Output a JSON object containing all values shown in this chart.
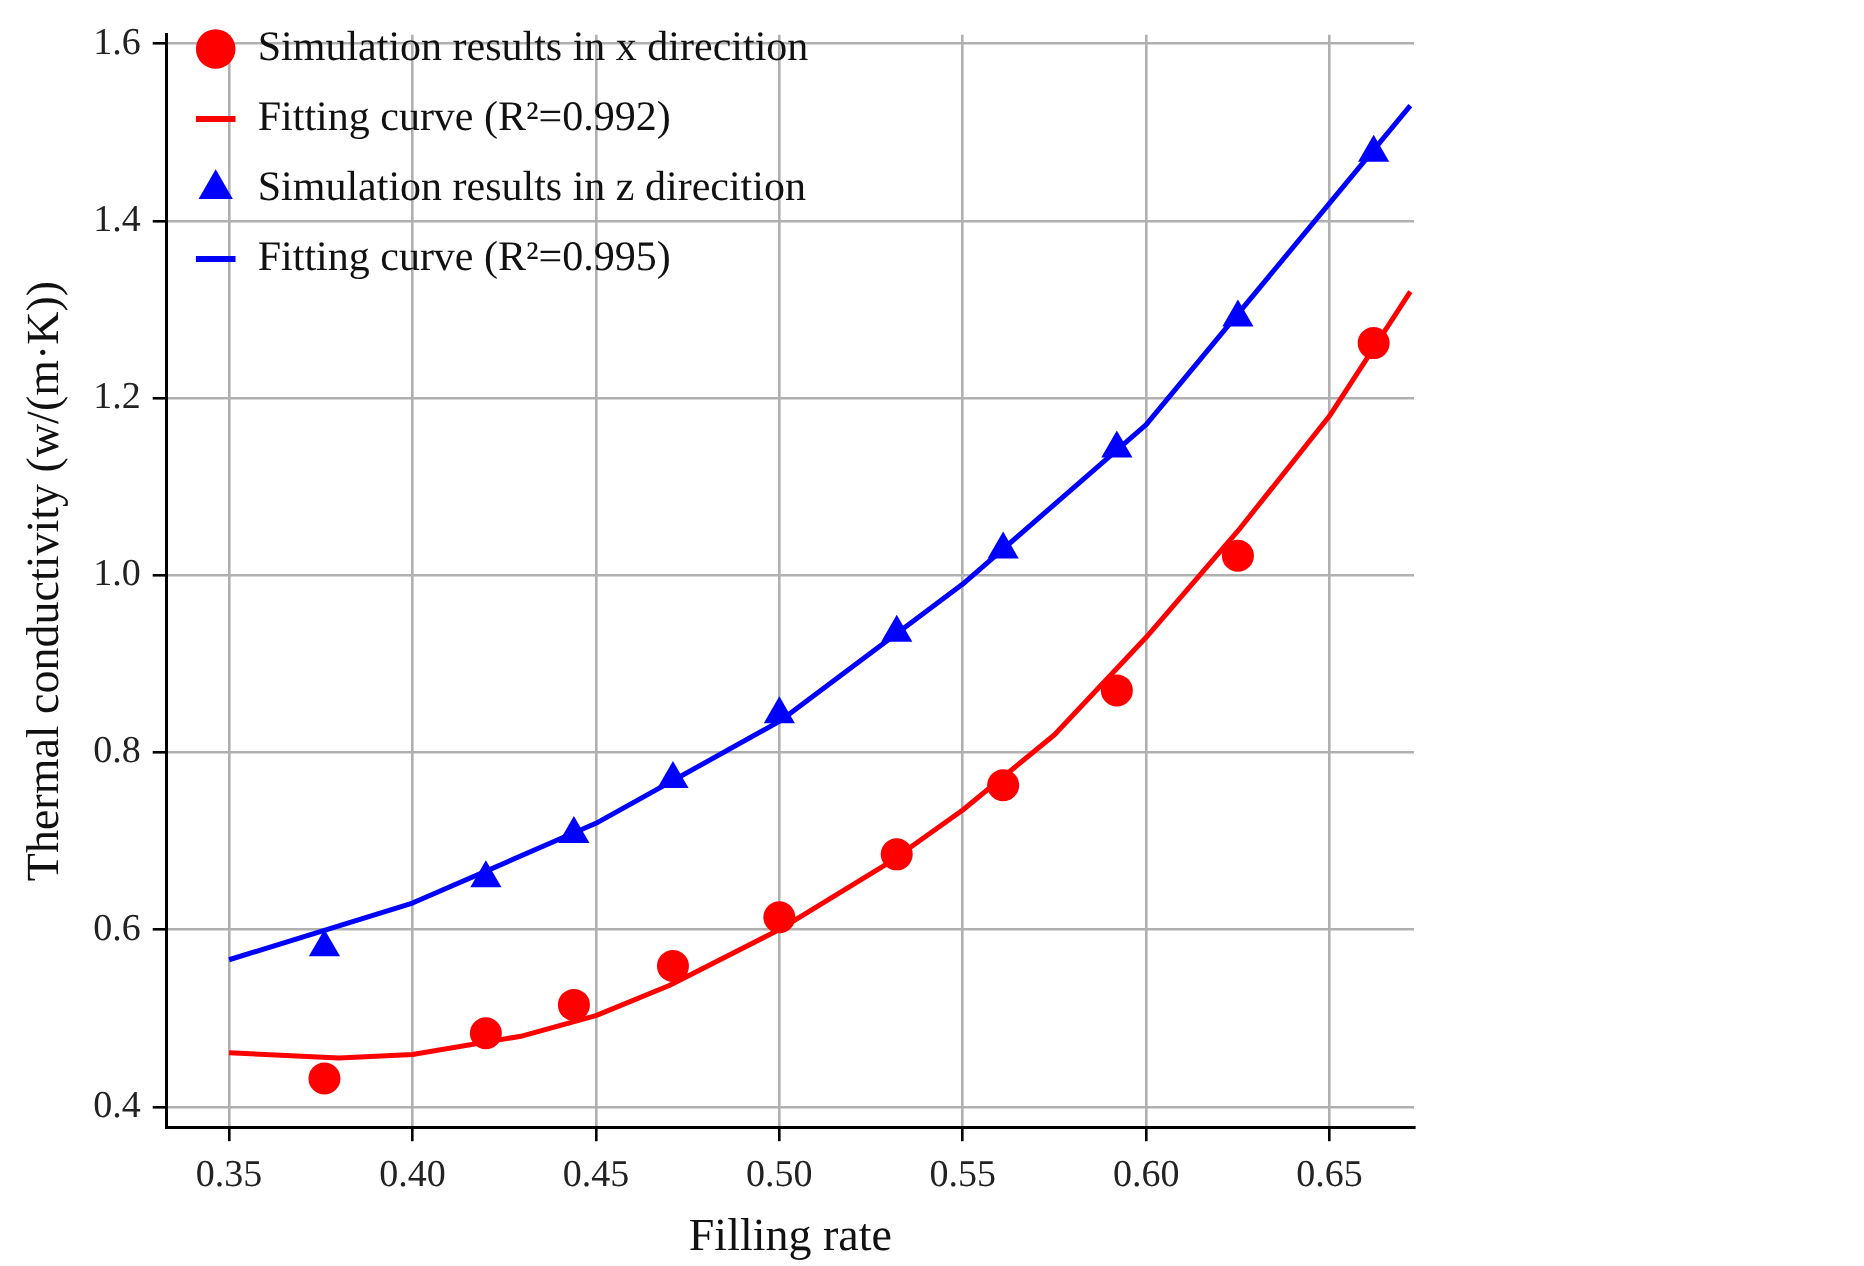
{
  "chart_data": {
    "type": "scatter",
    "xlabel": "Filling rate",
    "ylabel": "Thermal conductivity (w/(m·K))",
    "xlim": [
      0.333,
      0.673
    ],
    "ylim": [
      0.377,
      1.61
    ],
    "xticks": [
      0.35,
      {
        "value": 0.4,
        "label": "0.40"
      },
      0.45,
      {
        "value": 0.5,
        "label": "0.50"
      },
      0.55,
      {
        "value": 0.6,
        "label": "0.60"
      },
      0.65
    ],
    "yticks": [
      0.4,
      0.6,
      0.8,
      {
        "value": 1,
        "label": "1.0"
      },
      1.2,
      1.4,
      1.6
    ],
    "grid": true,
    "legend": "top left",
    "series": [
      {
        "name": "Simulation results in x direcition",
        "marker": "circle",
        "color": "#ff0000",
        "x": [
          0.376,
          0.42,
          0.444,
          0.471,
          0.5,
          0.532,
          0.561,
          0.592,
          0.625,
          0.662
        ],
        "values": [
          0.432,
          0.483,
          0.515,
          0.559,
          0.614,
          0.685,
          0.763,
          0.87,
          1.022,
          1.262
        ]
      },
      {
        "name": "Fitting curve (R²=0.992)",
        "type": "line",
        "marker": "none",
        "line_style": "solid",
        "color": "#ff0000",
        "x": [
          0.35,
          0.38,
          0.4,
          0.43,
          0.45,
          0.47,
          0.5,
          0.53,
          0.55,
          0.575,
          0.6,
          0.625,
          0.65,
          0.672
        ],
        "values": [
          0.461,
          0.455,
          0.459,
          0.48,
          0.503,
          0.537,
          0.6,
          0.676,
          0.735,
          0.82,
          0.93,
          1.05,
          1.18,
          1.32
        ]
      },
      {
        "name": "Simulation results in z direcition",
        "marker": "triangle",
        "color": "#0000ff",
        "x": [
          0.376,
          0.42,
          0.444,
          0.471,
          0.5,
          0.532,
          0.561,
          0.592,
          0.625,
          0.662
        ],
        "values": [
          0.58,
          0.658,
          0.708,
          0.77,
          0.843,
          0.935,
          1.029,
          1.143,
          1.291,
          1.477
        ]
      },
      {
        "name": "Fitting curve (R²=0.995)",
        "type": "line",
        "marker": "none",
        "line_style": "solid",
        "color": "#0000ff",
        "x": [
          0.35,
          0.4,
          0.45,
          0.5,
          0.55,
          0.6,
          0.65,
          0.672
        ],
        "values": [
          0.566,
          0.63,
          0.72,
          0.835,
          0.99,
          1.17,
          1.42,
          1.53
        ]
      }
    ]
  }
}
